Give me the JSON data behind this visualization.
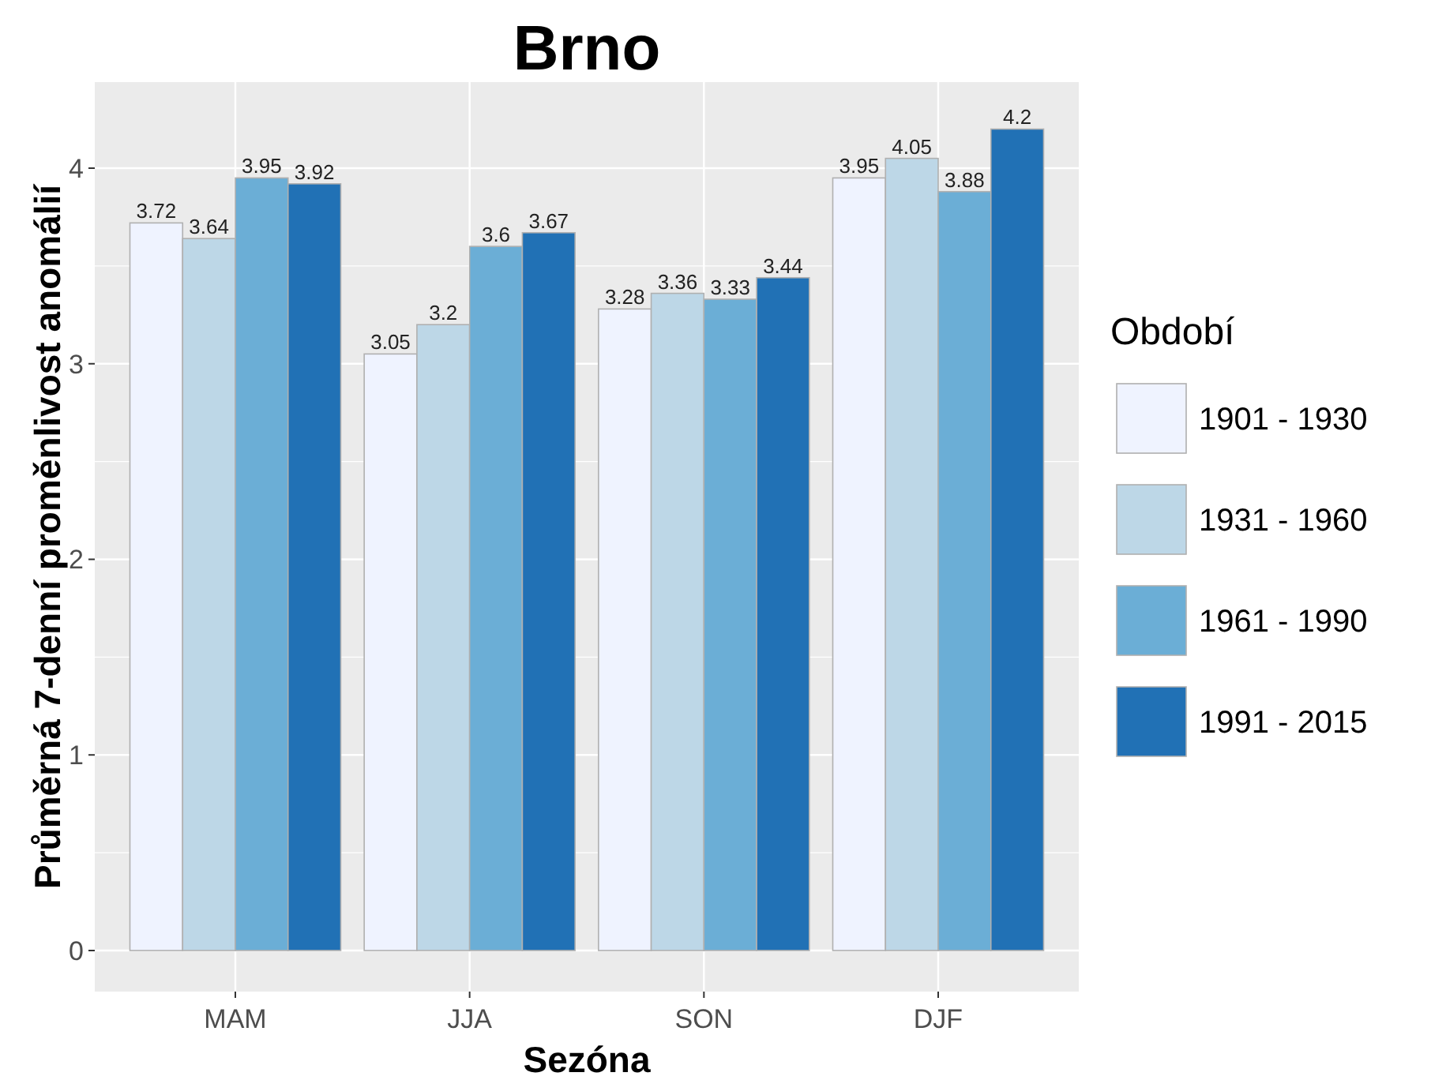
{
  "chart_data": {
    "type": "bar",
    "title": "Brno",
    "xlabel": "Sezóna",
    "ylabel": "Průměrná 7-denní proměnlivost anomálií",
    "legend_title": "Období",
    "categories": [
      "MAM",
      "JJA",
      "SON",
      "DJF"
    ],
    "series": [
      {
        "name": "1901 - 1930",
        "color": "#eff3ff",
        "values": [
          3.72,
          3.05,
          3.28,
          3.95
        ]
      },
      {
        "name": "1931 - 1960",
        "color": "#bdd7e7",
        "values": [
          3.64,
          3.2,
          3.36,
          4.05
        ]
      },
      {
        "name": "1961 - 1990",
        "color": "#6baed6",
        "values": [
          3.95,
          3.6,
          3.33,
          3.88
        ]
      },
      {
        "name": "1991 - 2015",
        "color": "#2171b5",
        "values": [
          3.92,
          3.67,
          3.44,
          4.2
        ]
      }
    ],
    "ylim": [
      -0.21,
      4.44
    ],
    "yticks": [
      0,
      1,
      2,
      3,
      4
    ],
    "grid": true,
    "legend": "right",
    "data_labels": true
  }
}
